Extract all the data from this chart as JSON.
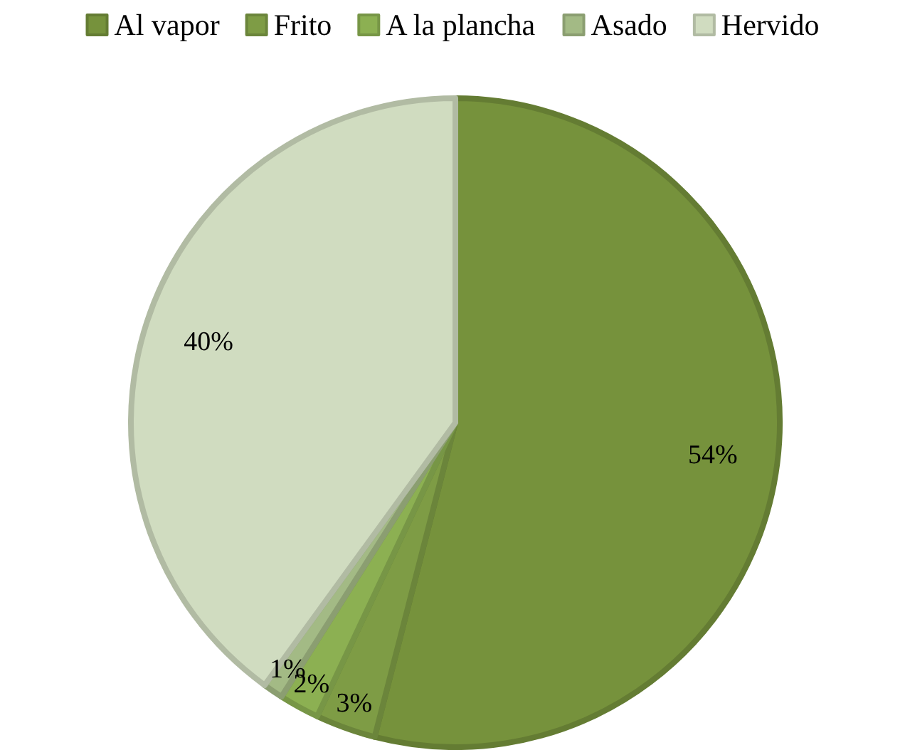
{
  "chart_data": {
    "type": "pie",
    "categories": [
      "Al vapor",
      "Frito",
      "A la plancha",
      "Asado",
      "Hervido"
    ],
    "values": [
      54,
      3,
      2,
      1,
      40
    ],
    "colors": [
      "#76923c",
      "#7e9c45",
      "#8cb052",
      "#a3ba85",
      "#d0dcc0"
    ],
    "value_labels": [
      "54%",
      "3%",
      "2%",
      "1%",
      "40%"
    ],
    "legend": "top"
  }
}
